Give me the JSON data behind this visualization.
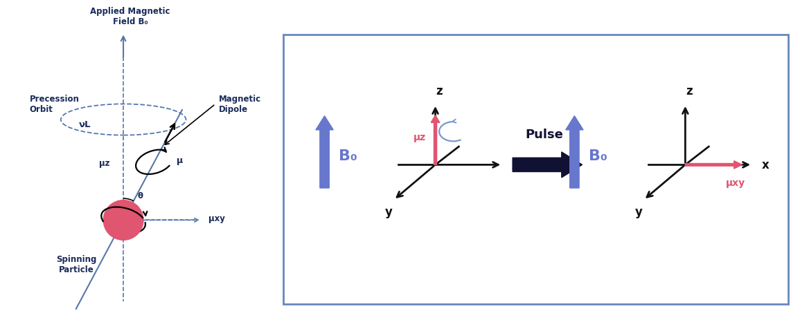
{
  "bg_color": "#ffffff",
  "left_panel": {
    "dashed_color": "#5577aa",
    "spin_color": "#e05570",
    "text_color": "#1a2a5a",
    "label_applied": "Applied Magnetic\nField B₀",
    "label_precession": "Precession\nOrbit",
    "label_nu": "νL",
    "label_magnetic": "Magnetic\nDipole",
    "label_muz": "μz",
    "label_mu": "μ",
    "label_theta": "θ",
    "label_muxy": "μxy",
    "label_spinning": "Spinning\nParticle"
  },
  "right_panel": {
    "box_color": "#6688bb",
    "axis_color": "#111111",
    "b0_color": "#6677cc",
    "muz_color": "#e05570",
    "muxy_color": "#e05570",
    "pulse_color": "#111133",
    "arc_color": "#7799cc",
    "label_z": "z",
    "label_x": "x",
    "label_y": "y",
    "label_b0": "B₀",
    "label_muz": "μz",
    "label_muxy": "μxy",
    "label_pulse": "Pulse"
  }
}
